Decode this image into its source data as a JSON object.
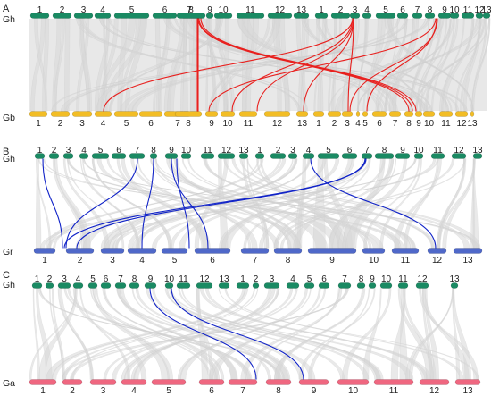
{
  "colors": {
    "gh": "#1a8a63",
    "gb": "#f2bd25",
    "gr": "#4f68c9",
    "ga": "#ef6780",
    "background_links": "#d7d7d7",
    "highlight_red": "#e8201e",
    "highlight_blue": "#1224c8"
  },
  "panels": [
    {
      "letter": "A",
      "top_genome": "Gh",
      "bottom_genome": "Gb",
      "top_chromosomes": [
        "1",
        "2",
        "3",
        "4",
        "5",
        "6",
        "7",
        "8",
        "9",
        "10",
        "11",
        "12",
        "13",
        "1",
        "2",
        "3",
        "4",
        "5",
        "6",
        "7",
        "8",
        "9",
        "10",
        "11",
        "12",
        "13"
      ],
      "bottom_chromosomes": [
        "1",
        "2",
        "3",
        "4",
        "5",
        "6",
        "7",
        "8",
        "9",
        "10",
        "11",
        "12",
        "13",
        "1",
        "2",
        "3",
        "4",
        "5",
        "6",
        "7",
        "8",
        "9",
        "10",
        "11",
        "12",
        "13"
      ],
      "highlight_color_key": "highlight_red"
    },
    {
      "letter": "B",
      "top_genome": "Gh",
      "bottom_genome": "Gr",
      "top_chromosomes": [
        "1",
        "2",
        "3",
        "4",
        "5",
        "6",
        "7",
        "8",
        "9",
        "10",
        "11",
        "12",
        "13",
        "1",
        "2",
        "3",
        "4",
        "5",
        "6",
        "7",
        "8",
        "9",
        "10",
        "11",
        "12",
        "13"
      ],
      "bottom_chromosomes": [
        "1",
        "2",
        "3",
        "4",
        "5",
        "6",
        "7",
        "8",
        "9",
        "10",
        "11",
        "12",
        "13"
      ],
      "highlight_color_key": "highlight_blue"
    },
    {
      "letter": "C",
      "top_genome": "Gh",
      "bottom_genome": "Ga",
      "top_chromosomes": [
        "1",
        "2",
        "3",
        "4",
        "5",
        "6",
        "7",
        "8",
        "9",
        "10",
        "11",
        "12",
        "13",
        "1",
        "2",
        "3",
        "4",
        "5",
        "6",
        "7",
        "8",
        "9",
        "10",
        "11",
        "12",
        "13"
      ],
      "bottom_chromosomes": [
        "1",
        "2",
        "3",
        "4",
        "5",
        "6",
        "7",
        "8",
        "9",
        "10",
        "11",
        "12",
        "13"
      ],
      "highlight_color_key": "highlight_blue"
    }
  ]
}
